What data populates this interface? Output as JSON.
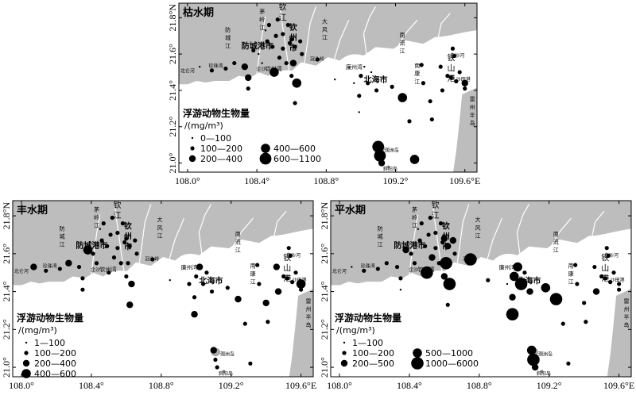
{
  "maps": [
    {
      "id": "dry",
      "title": "枯水期",
      "x_ticks": [
        "108.0°",
        "108.4°",
        "108.8°",
        "109.2°",
        "109.6°E"
      ],
      "y_ticks": [
        "21.8°N",
        "21.6°",
        "21.4°",
        "21.2°",
        "21.0°"
      ],
      "legend_title": "浮游动物生物量",
      "legend_unit": "/(mg/m³)",
      "legend_classes": [
        "0—100",
        "100—200",
        "200—400",
        "400—600",
        "600—1100"
      ]
    },
    {
      "id": "wet",
      "title": "丰水期",
      "x_ticks": [
        "108.0°",
        "108.4°",
        "108.8°",
        "109.2°",
        "109.6°E"
      ],
      "y_ticks": [
        "21.8°N",
        "21.6°",
        "21.4°",
        "21.2°",
        "21.0°"
      ],
      "legend_title": "浮游动物生物量",
      "legend_unit": "/(mg/m³)",
      "legend_classes": [
        "1—100",
        "100—200",
        "200—400",
        "400—600"
      ]
    },
    {
      "id": "normal",
      "title": "平水期",
      "x_ticks": [
        "108.0°",
        "108.4°",
        "108.8°",
        "109.2°",
        "109.6°E"
      ],
      "y_ticks": [
        "21.8°N",
        "21.6°",
        "21.4°",
        "21.2°",
        "21.0°"
      ],
      "legend_title": "浮游动物生物量",
      "legend_unit": "/(mg/m³)",
      "legend_classes": [
        "1—100",
        "100—200",
        "200—500",
        "500—1000",
        "1000—6000"
      ]
    }
  ],
  "place_labels": {
    "fangcheng_river": "防城江",
    "fangcheng_port": "防城港市",
    "maoling_river": "茅岭江",
    "qin_river": "钦江",
    "qinzhou_city": "钦州市",
    "dafeng_river": "大风江",
    "nanliu_river": "南流江",
    "qin_bay": "钦州湾",
    "lianzhou_bay": "廉州湾",
    "beihai_city": "北海市",
    "tieshan_port": "铁山港",
    "baisha_river": "白沙河",
    "nankang_river": "南康江",
    "shatian_port": "沙田港",
    "zhenzhu_bay": "珍珠湾",
    "beilun_river": "北仑河",
    "qishajiao": "企沙",
    "guanniu_point": "冠头岭",
    "weizhou_island": "涠洲岛",
    "xieyang_island": "斜阳岛",
    "leizhou_peninsula": "雷州半岛"
  },
  "stations": [
    {
      "lon": 108.07,
      "lat": 21.53,
      "dry": 100,
      "wet": 300,
      "normal": 50
    },
    {
      "lon": 108.14,
      "lat": 21.51,
      "dry": 150,
      "wet": 150,
      "normal": 150
    },
    {
      "lon": 108.22,
      "lat": 21.52,
      "dry": 150,
      "wet": 150,
      "normal": 150
    },
    {
      "lon": 108.27,
      "lat": 21.55,
      "dry": 150,
      "wet": 250,
      "normal": 150
    },
    {
      "lon": 108.33,
      "lat": 21.53,
      "dry": 300,
      "wet": 150,
      "normal": 150
    },
    {
      "lon": 108.35,
      "lat": 21.47,
      "dry": 300,
      "wet": 150,
      "normal": 150
    },
    {
      "lon": 108.35,
      "lat": 21.41,
      "dry": 150,
      "wet": 150,
      "normal": 50
    },
    {
      "lon": 108.38,
      "lat": 21.62,
      "dry": 150,
      "wet": 450,
      "normal": 350
    },
    {
      "lon": 108.41,
      "lat": 21.6,
      "dry": 50,
      "wet": 150,
      "normal": 150
    },
    {
      "lon": 108.43,
      "lat": 21.55,
      "dry": 50,
      "wet": 150,
      "normal": 150
    },
    {
      "lon": 108.45,
      "lat": 21.73,
      "dry": 50,
      "wet": 50,
      "normal": 50
    },
    {
      "lon": 108.46,
      "lat": 21.67,
      "dry": 150,
      "wet": 150,
      "normal": 150
    },
    {
      "lon": 108.47,
      "lat": 21.76,
      "dry": 150,
      "wet": 150,
      "normal": 150
    },
    {
      "lon": 108.49,
      "lat": 21.64,
      "dry": 150,
      "wet": 150,
      "normal": 150
    },
    {
      "lon": 108.5,
      "lat": 21.5,
      "dry": 450,
      "wet": 150,
      "normal": 1500
    },
    {
      "lon": 108.51,
      "lat": 21.7,
      "dry": 150,
      "wet": 150,
      "normal": 150
    },
    {
      "lon": 108.52,
      "lat": 21.79,
      "dry": 150,
      "wet": 150,
      "normal": 150
    },
    {
      "lon": 108.53,
      "lat": 21.58,
      "dry": 150,
      "wet": 150,
      "normal": 300
    },
    {
      "lon": 108.55,
      "lat": 21.63,
      "dry": 150,
      "wet": 150,
      "normal": 150
    },
    {
      "lon": 108.55,
      "lat": 21.71,
      "dry": 150,
      "wet": 150,
      "normal": 150
    },
    {
      "lon": 108.57,
      "lat": 21.55,
      "dry": 150,
      "wet": 150,
      "normal": 150
    },
    {
      "lon": 108.58,
      "lat": 21.76,
      "dry": 150,
      "wet": 150,
      "normal": 150
    },
    {
      "lon": 108.59,
      "lat": 21.66,
      "dry": 150,
      "wet": 150,
      "normal": 150
    },
    {
      "lon": 108.6,
      "lat": 21.48,
      "dry": 150,
      "wet": 150,
      "normal": 300
    },
    {
      "lon": 108.6,
      "lat": 21.68,
      "dry": 150,
      "wet": 150,
      "normal": 300
    },
    {
      "lon": 108.61,
      "lat": 21.55,
      "dry": 300,
      "wet": 150,
      "normal": 2500
    },
    {
      "lon": 108.62,
      "lat": 21.64,
      "dry": 150,
      "wet": 150,
      "normal": 300
    },
    {
      "lon": 108.62,
      "lat": 21.33,
      "dry": 150,
      "wet": 300,
      "normal": 150
    },
    {
      "lon": 108.63,
      "lat": 21.44,
      "dry": 450,
      "wet": 300,
      "normal": 1500
    },
    {
      "lon": 108.65,
      "lat": 21.67,
      "dry": 150,
      "wet": 150,
      "normal": 300
    },
    {
      "lon": 108.66,
      "lat": 21.6,
      "dry": 150,
      "wet": 150,
      "normal": 150
    },
    {
      "lon": 108.75,
      "lat": 21.57,
      "dry": 150,
      "wet": 150,
      "normal": 1500
    },
    {
      "lon": 108.85,
      "lat": 21.46,
      "dry": 50,
      "wet": 50,
      "normal": 150
    },
    {
      "lon": 108.96,
      "lat": 21.44,
      "dry": 50,
      "wet": 150,
      "normal": 50
    },
    {
      "lon": 108.99,
      "lat": 21.37,
      "dry": 150,
      "wet": 150,
      "normal": 500
    },
    {
      "lon": 108.99,
      "lat": 21.28,
      "dry": 50,
      "wet": 300,
      "normal": 1500
    },
    {
      "lon": 109.0,
      "lat": 21.48,
      "dry": 150,
      "wet": 150,
      "normal": 800
    },
    {
      "lon": 109.02,
      "lat": 21.53,
      "dry": 50,
      "wet": 300,
      "normal": 800
    },
    {
      "lon": 109.04,
      "lat": 21.44,
      "dry": 150,
      "wet": 150,
      "normal": 2500
    },
    {
      "lon": 109.06,
      "lat": 21.5,
      "dry": 50,
      "wet": 150,
      "normal": 150
    },
    {
      "lon": 109.09,
      "lat": 21.4,
      "dry": 150,
      "wet": 150,
      "normal": 300
    },
    {
      "lon": 109.1,
      "lat": 21.09,
      "dry": 900,
      "wet": 300,
      "normal": 800
    },
    {
      "lon": 109.11,
      "lat": 21.04,
      "dry": 900,
      "wet": 150,
      "normal": 1500
    },
    {
      "lon": 109.12,
      "lat": 21.0,
      "dry": 300,
      "wet": 150,
      "normal": 300
    },
    {
      "lon": 109.18,
      "lat": 21.42,
      "dry": 150,
      "wet": 150,
      "normal": 800
    },
    {
      "lon": 109.24,
      "lat": 21.36,
      "dry": 450,
      "wet": 300,
      "normal": 2500
    },
    {
      "lon": 109.28,
      "lat": 21.23,
      "dry": 150,
      "wet": 150,
      "normal": 150
    },
    {
      "lon": 109.31,
      "lat": 21.02,
      "dry": 450,
      "wet": 150,
      "normal": 150
    },
    {
      "lon": 109.35,
      "lat": 21.54,
      "dry": 150,
      "wet": 150,
      "normal": 150
    },
    {
      "lon": 109.36,
      "lat": 21.44,
      "dry": 150,
      "wet": 150,
      "normal": 150
    },
    {
      "lon": 109.4,
      "lat": 21.34,
      "dry": 150,
      "wet": 300,
      "normal": 150
    },
    {
      "lon": 109.41,
      "lat": 21.24,
      "dry": 150,
      "wet": 150,
      "normal": 150
    },
    {
      "lon": 109.46,
      "lat": 21.53,
      "dry": 150,
      "wet": 300,
      "normal": 150
    },
    {
      "lon": 109.47,
      "lat": 21.4,
      "dry": 150,
      "wet": 300,
      "normal": 300
    },
    {
      "lon": 109.5,
      "lat": 21.48,
      "dry": 150,
      "wet": 150,
      "normal": 150
    },
    {
      "lon": 109.52,
      "lat": 21.47,
      "dry": 150,
      "wet": 150,
      "normal": 150
    },
    {
      "lon": 109.53,
      "lat": 21.63,
      "dry": 150,
      "wet": 150,
      "normal": 150
    },
    {
      "lon": 109.54,
      "lat": 21.59,
      "dry": 150,
      "wet": 150,
      "normal": 150
    },
    {
      "lon": 109.55,
      "lat": 21.45,
      "dry": 150,
      "wet": 150,
      "normal": 150
    },
    {
      "lon": 109.57,
      "lat": 21.5,
      "dry": 150,
      "wet": 150,
      "normal": 150
    },
    {
      "lon": 109.6,
      "lat": 21.44,
      "dry": 300,
      "wet": 450,
      "normal": 150
    },
    {
      "lon": 109.6,
      "lat": 21.41,
      "dry": 150,
      "wet": 150,
      "normal": 150
    }
  ],
  "colors": {
    "land": "#bdbdbd",
    "river": "#ffffff",
    "sea": "#ffffff",
    "dot": "#000000",
    "island_dot": "#9e9e9e"
  }
}
